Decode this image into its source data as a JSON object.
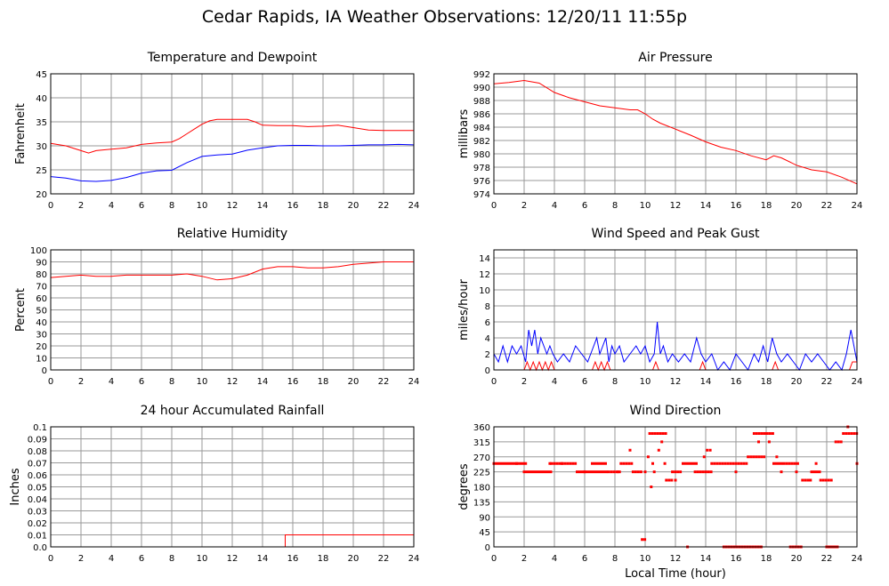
{
  "title": "Cedar Rapids, IA Weather Observations: 12/20/11 11:55p",
  "xlabel_bottom": "Local Time (hour)",
  "colors": {
    "red": "#ff0000",
    "blue": "#0000ff",
    "grid": "#999999",
    "frame": "#000000"
  },
  "chart_data": [
    {
      "id": "temp",
      "type": "line",
      "title": "Temperature and Dewpoint",
      "ylabel": "Fahrenheit",
      "xlim": [
        0,
        24
      ],
      "ylim": [
        20,
        45
      ],
      "x_ticks": [
        0,
        2,
        4,
        6,
        8,
        10,
        12,
        14,
        16,
        18,
        20,
        22,
        24
      ],
      "y_ticks": [
        20,
        25,
        30,
        35,
        40,
        45
      ],
      "grid": true,
      "series": [
        {
          "color": "#ff0000",
          "x": [
            0,
            1,
            2,
            2.5,
            3,
            4,
            5,
            6,
            7,
            8,
            8.5,
            9,
            9.5,
            10,
            10.5,
            11,
            12,
            13,
            13.5,
            14,
            15,
            16,
            17,
            18,
            19,
            20,
            21,
            22,
            23,
            24
          ],
          "y": [
            30.5,
            30,
            29,
            28.5,
            29,
            29.3,
            29.6,
            30.3,
            30.6,
            30.8,
            31.5,
            32.5,
            33.5,
            34.5,
            35.2,
            35.5,
            35.5,
            35.5,
            35,
            34.3,
            34.2,
            34.2,
            34,
            34.1,
            34.3,
            33.8,
            33.3,
            33.2,
            33.2,
            33.2
          ]
        },
        {
          "color": "#0000ff",
          "x": [
            0,
            1,
            2,
            3,
            4,
            5,
            6,
            7,
            8,
            9,
            10,
            11,
            12,
            13,
            14,
            15,
            16,
            17,
            18,
            19,
            20,
            21,
            22,
            23,
            24
          ],
          "y": [
            23.6,
            23.3,
            22.7,
            22.6,
            22.8,
            23.4,
            24.3,
            24.8,
            24.9,
            26.5,
            27.8,
            28.1,
            28.3,
            29.1,
            29.6,
            30,
            30.1,
            30.1,
            30,
            30,
            30.1,
            30.2,
            30.2,
            30.3,
            30.2
          ]
        }
      ]
    },
    {
      "id": "pressure",
      "type": "line",
      "title": "Air Pressure",
      "ylabel": "millibars",
      "xlim": [
        0,
        24
      ],
      "ylim": [
        974,
        992
      ],
      "x_ticks": [
        0,
        2,
        4,
        6,
        8,
        10,
        12,
        14,
        16,
        18,
        20,
        22,
        24
      ],
      "y_ticks": [
        974,
        976,
        978,
        980,
        982,
        984,
        986,
        988,
        990,
        992
      ],
      "grid": true,
      "series": [
        {
          "color": "#ff0000",
          "x": [
            0,
            1,
            2,
            3,
            4,
            5,
            6,
            7,
            8,
            9,
            9.5,
            10,
            10.5,
            11,
            12,
            13,
            14,
            15,
            16,
            17,
            18,
            18.5,
            19,
            20,
            21,
            22,
            23,
            24
          ],
          "y": [
            990.5,
            990.7,
            991,
            990.6,
            989.2,
            988.4,
            987.8,
            987.2,
            986.9,
            986.6,
            986.6,
            986,
            985.2,
            984.6,
            983.7,
            982.8,
            981.8,
            981,
            980.5,
            979.7,
            979.1,
            979.7,
            979.4,
            978.3,
            977.6,
            977.3,
            976.5,
            975.5
          ]
        }
      ]
    },
    {
      "id": "humidity",
      "type": "line",
      "title": "Relative Humidity",
      "ylabel": "Percent",
      "xlim": [
        0,
        24
      ],
      "ylim": [
        0,
        100
      ],
      "x_ticks": [
        0,
        2,
        4,
        6,
        8,
        10,
        12,
        14,
        16,
        18,
        20,
        22,
        24
      ],
      "y_ticks": [
        0,
        10,
        20,
        30,
        40,
        50,
        60,
        70,
        80,
        90,
        100
      ],
      "grid": true,
      "series": [
        {
          "color": "#ff0000",
          "x": [
            0,
            1,
            2,
            3,
            4,
            5,
            6,
            7,
            8,
            9,
            10,
            11,
            12,
            13,
            14,
            15,
            16,
            17,
            18,
            19,
            20,
            21,
            22,
            23,
            24
          ],
          "y": [
            77,
            78,
            79,
            78,
            78,
            79,
            79,
            79,
            79,
            80,
            78,
            75,
            76,
            79,
            84,
            86,
            86,
            85,
            85,
            86,
            88,
            89,
            90,
            90,
            90
          ]
        }
      ]
    },
    {
      "id": "wind",
      "type": "line",
      "title": "Wind Speed and Peak Gust",
      "ylabel": "miles/hour",
      "xlim": [
        0,
        24
      ],
      "ylim": [
        0,
        15
      ],
      "x_ticks": [
        0,
        2,
        4,
        6,
        8,
        10,
        12,
        14,
        16,
        18,
        20,
        22,
        24
      ],
      "y_ticks": [
        0,
        2,
        4,
        6,
        8,
        10,
        12,
        14
      ],
      "grid": true,
      "series": [
        {
          "color": "#0000ff",
          "x": [
            0,
            0.3,
            0.6,
            0.9,
            1.2,
            1.5,
            1.8,
            2.1,
            2.3,
            2.5,
            2.7,
            2.9,
            3.1,
            3.3,
            3.5,
            3.7,
            3.9,
            4.2,
            4.6,
            5.0,
            5.4,
            5.8,
            6.2,
            6.6,
            6.8,
            7.0,
            7.2,
            7.4,
            7.6,
            7.8,
            8.0,
            8.3,
            8.6,
            9.0,
            9.4,
            9.7,
            10.0,
            10.3,
            10.6,
            10.8,
            11.0,
            11.2,
            11.5,
            11.8,
            12.2,
            12.6,
            13.0,
            13.4,
            13.7,
            14.0,
            14.4,
            14.8,
            15.2,
            15.6,
            16.0,
            16.4,
            16.8,
            17.2,
            17.5,
            17.8,
            18.1,
            18.4,
            18.7,
            19.0,
            19.4,
            19.8,
            20.2,
            20.6,
            21.0,
            21.4,
            21.8,
            22.2,
            22.6,
            23.0,
            23.3,
            23.6,
            23.8,
            24.0
          ],
          "y": [
            2,
            1,
            3,
            1,
            3,
            2,
            3,
            1,
            5,
            3,
            5,
            2,
            4,
            3,
            2,
            3,
            2,
            1,
            2,
            1,
            3,
            2,
            1,
            3,
            4,
            2,
            3,
            4,
            1,
            3,
            2,
            3,
            1,
            2,
            3,
            2,
            3,
            1,
            2,
            6,
            2,
            3,
            1,
            2,
            1,
            2,
            1,
            4,
            2,
            1,
            2,
            0,
            1,
            0,
            2,
            1,
            0,
            2,
            1,
            3,
            1,
            4,
            2,
            1,
            2,
            1,
            0,
            2,
            1,
            2,
            1,
            0,
            1,
            0,
            2,
            5,
            3,
            1
          ]
        },
        {
          "color": "#ff0000",
          "x": [
            0,
            2.0,
            2.2,
            2.4,
            2.6,
            2.8,
            3.0,
            3.2,
            3.4,
            3.6,
            3.8,
            4.0,
            6.5,
            6.7,
            6.9,
            7.1,
            7.3,
            7.5,
            7.7,
            7.9,
            10.5,
            10.7,
            10.9,
            13.6,
            13.8,
            14.0,
            18.4,
            18.6,
            18.8,
            23.5,
            23.7,
            24.0
          ],
          "y": [
            0,
            0,
            1,
            0,
            1,
            0,
            1,
            0,
            1,
            0,
            1,
            0,
            0,
            1,
            0,
            1,
            0,
            1,
            0,
            0,
            0,
            1,
            0,
            0,
            1,
            0,
            0,
            1,
            0,
            0,
            1,
            1
          ]
        }
      ]
    },
    {
      "id": "rain",
      "type": "line",
      "title": "24 hour Accumulated Rainfall",
      "ylabel": "Inches",
      "xlim": [
        0,
        24
      ],
      "ylim": [
        0,
        0.1
      ],
      "x_ticks": [
        0,
        2,
        4,
        6,
        8,
        10,
        12,
        14,
        16,
        18,
        20,
        22,
        24
      ],
      "y_ticks": [
        0.0,
        0.01,
        0.02,
        0.03,
        0.04,
        0.05,
        0.06,
        0.07,
        0.08,
        0.09,
        0.1
      ],
      "y_tick_labels": [
        "0.0",
        "0.01",
        "0.02",
        "0.03",
        "0.04",
        "0.05",
        "0.06",
        "0.07",
        "0.08",
        "0.09",
        "0.1"
      ],
      "grid": true,
      "series": [
        {
          "color": "#ff0000",
          "x": [
            0,
            15.5,
            15.5,
            24
          ],
          "y": [
            0,
            0,
            0.01,
            0.01
          ]
        }
      ]
    },
    {
      "id": "direction",
      "type": "scatter",
      "title": "Wind Direction",
      "ylabel": "degrees",
      "xlim": [
        0,
        24
      ],
      "ylim": [
        0,
        360
      ],
      "x_ticks": [
        0,
        2,
        4,
        6,
        8,
        10,
        12,
        14,
        16,
        18,
        20,
        22,
        24
      ],
      "y_ticks": [
        0,
        45,
        90,
        135,
        180,
        225,
        270,
        315,
        360
      ],
      "grid": true,
      "series": [
        {
          "color": "#ff0000",
          "segments": [
            {
              "x0": 0.0,
              "x1": 2.0,
              "y": 250
            },
            {
              "x0": 2.0,
              "x1": 3.8,
              "y": 225
            },
            {
              "x0": 3.8,
              "x1": 5.5,
              "y": 250
            },
            {
              "x0": 5.5,
              "x1": 7.6,
              "y": 225
            },
            {
              "x0": 6.5,
              "x1": 7.5,
              "y": 250
            },
            {
              "x0": 7.6,
              "x1": 8.4,
              "y": 225
            },
            {
              "x0": 8.4,
              "x1": 9.2,
              "y": 250
            },
            {
              "x0": 9.2,
              "x1": 9.8,
              "y": 225
            },
            {
              "x0": 9.8,
              "x1": 10.0,
              "y": 22
            },
            {
              "x0": 10.3,
              "x1": 11.4,
              "y": 340
            },
            {
              "x0": 11.4,
              "x1": 11.8,
              "y": 200
            },
            {
              "x0": 11.8,
              "x1": 12.4,
              "y": 225
            },
            {
              "x0": 12.5,
              "x1": 13.5,
              "y": 250
            },
            {
              "x0": 13.3,
              "x1": 14.4,
              "y": 225
            },
            {
              "x0": 14.4,
              "x1": 16.8,
              "y": 250
            },
            {
              "x0": 15.2,
              "x1": 17.8,
              "y": 0
            },
            {
              "x0": 16.8,
              "x1": 18.0,
              "y": 270
            },
            {
              "x0": 17.2,
              "x1": 18.6,
              "y": 340
            },
            {
              "x0": 18.5,
              "x1": 19.2,
              "y": 250
            },
            {
              "x0": 19.2,
              "x1": 20.2,
              "y": 250
            },
            {
              "x0": 19.6,
              "x1": 20.4,
              "y": 0
            },
            {
              "x0": 20.4,
              "x1": 21.0,
              "y": 200
            },
            {
              "x0": 21.0,
              "x1": 21.6,
              "y": 225
            },
            {
              "x0": 21.6,
              "x1": 22.4,
              "y": 200
            },
            {
              "x0": 22.0,
              "x1": 22.8,
              "y": 0
            },
            {
              "x0": 22.6,
              "x1": 23.1,
              "y": 315
            },
            {
              "x0": 23.1,
              "x1": 24.0,
              "y": 340
            }
          ],
          "points": [
            [
              2.1,
              250
            ],
            [
              3.7,
              250
            ],
            [
              8.2,
              225
            ],
            [
              9.0,
              290
            ],
            [
              10.0,
              225
            ],
            [
              10.2,
              270
            ],
            [
              10.4,
              180
            ],
            [
              10.6,
              225
            ],
            [
              10.9,
              290
            ],
            [
              11.1,
              315
            ],
            [
              11.3,
              250
            ],
            [
              12.0,
              200
            ],
            [
              12.8,
              0
            ],
            [
              13.9,
              270
            ],
            [
              14.1,
              290
            ],
            [
              14.3,
              290
            ],
            [
              16.0,
              225
            ],
            [
              17.5,
              315
            ],
            [
              17.9,
              340
            ],
            [
              18.2,
              315
            ],
            [
              18.7,
              270
            ],
            [
              19.0,
              225
            ],
            [
              20.0,
              225
            ],
            [
              20.8,
              200
            ],
            [
              21.3,
              250
            ],
            [
              23.4,
              360
            ],
            [
              24.0,
              250
            ],
            [
              1.5,
              250
            ],
            [
              4.5,
              250
            ],
            [
              6.0,
              225
            ],
            [
              10.5,
              250
            ]
          ]
        }
      ]
    }
  ]
}
